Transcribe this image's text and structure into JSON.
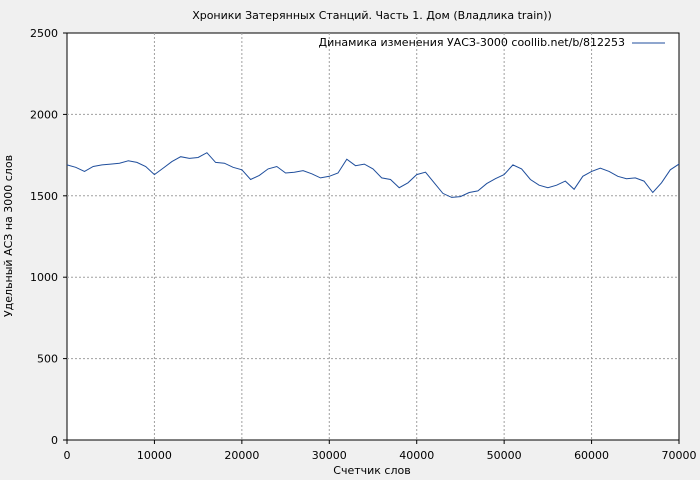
{
  "chart_data": {
    "type": "line",
    "title": "Хроники Затерянных Станций. Часть 1. Дом (Владлика train))",
    "xlabel": "Счетчик слов",
    "ylabel": "Удельный АСЗ на 3000 слов",
    "xlim": [
      0,
      70000
    ],
    "ylim": [
      0,
      2500
    ],
    "x_ticks": [
      0,
      10000,
      20000,
      30000,
      40000,
      50000,
      60000,
      70000
    ],
    "y_ticks": [
      0,
      500,
      1000,
      1500,
      2000,
      2500
    ],
    "grid": true,
    "legend_position": "top-right",
    "series": [
      {
        "name": "Динамика изменения УАСЗ-3000 coollib.net/b/812253",
        "color": "#1f4e9c",
        "x": [
          0,
          1000,
          2000,
          3000,
          4000,
          5000,
          6000,
          7000,
          8000,
          9000,
          10000,
          11000,
          12000,
          13000,
          14000,
          15000,
          16000,
          17000,
          18000,
          19000,
          20000,
          21000,
          22000,
          23000,
          24000,
          25000,
          26000,
          27000,
          28000,
          29000,
          30000,
          31000,
          32000,
          33000,
          34000,
          35000,
          36000,
          37000,
          38000,
          39000,
          40000,
          41000,
          42000,
          43000,
          44000,
          45000,
          46000,
          47000,
          48000,
          49000,
          50000,
          51000,
          52000,
          53000,
          54000,
          55000,
          56000,
          57000,
          58000,
          59000,
          60000,
          61000,
          62000,
          63000,
          64000,
          65000,
          66000,
          67000,
          68000,
          69000,
          70000
        ],
        "y": [
          1690,
          1675,
          1650,
          1680,
          1690,
          1695,
          1700,
          1715,
          1705,
          1680,
          1630,
          1670,
          1710,
          1740,
          1730,
          1735,
          1765,
          1705,
          1700,
          1675,
          1660,
          1600,
          1625,
          1665,
          1680,
          1640,
          1645,
          1655,
          1635,
          1610,
          1620,
          1640,
          1725,
          1685,
          1695,
          1665,
          1610,
          1600,
          1550,
          1580,
          1630,
          1645,
          1580,
          1515,
          1490,
          1495,
          1520,
          1530,
          1575,
          1605,
          1630,
          1690,
          1665,
          1600,
          1565,
          1550,
          1565,
          1590,
          1540,
          1620,
          1650,
          1670,
          1650,
          1620,
          1605,
          1610,
          1590,
          1520,
          1580,
          1660,
          1695
        ]
      }
    ]
  }
}
